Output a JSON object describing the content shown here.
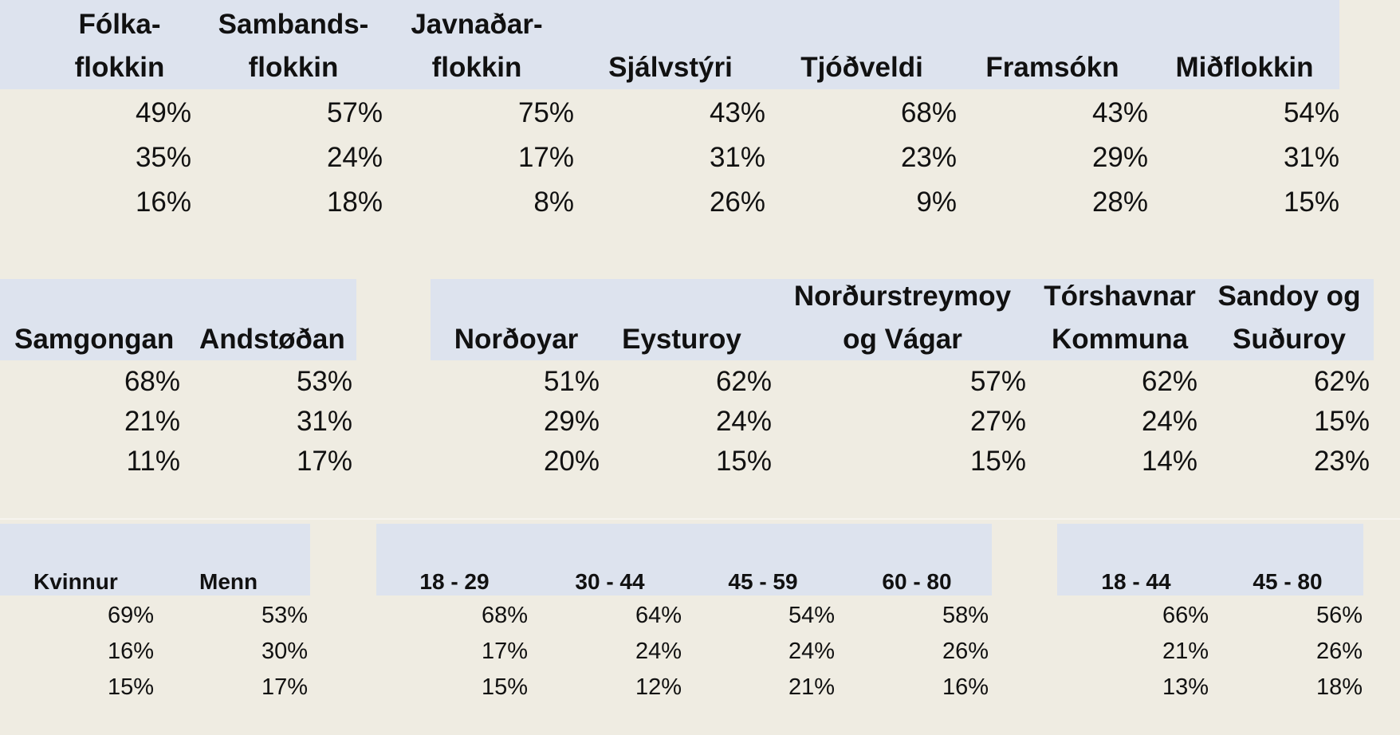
{
  "tables": [
    {
      "name": "parties",
      "headers": [
        "Fólka-\nflokkin",
        "Sambands-\nflokkin",
        "Javnaðar-\nflokkin",
        "Sjálvstýri",
        "Tjóðveldi",
        "Framsókn",
        "Miðflokkin"
      ],
      "rows": [
        [
          "49%",
          "57%",
          "75%",
          "43%",
          "68%",
          "43%",
          "54%"
        ],
        [
          "35%",
          "24%",
          "17%",
          "31%",
          "23%",
          "29%",
          "31%"
        ],
        [
          "16%",
          "18%",
          "8%",
          "26%",
          "9%",
          "28%",
          "15%"
        ]
      ]
    },
    {
      "name": "coalition",
      "headers": [
        "Samgongan",
        "Andstøðan"
      ],
      "rows": [
        [
          "68%",
          "53%"
        ],
        [
          "21%",
          "31%"
        ],
        [
          "11%",
          "17%"
        ]
      ]
    },
    {
      "name": "regions",
      "headers": [
        "Norðoyar",
        "Eysturoy",
        "Norðurstreymoy\nog Vágar",
        "Tórshavnar\nKommuna",
        "Sandoy og\nSuðuroy"
      ],
      "rows": [
        [
          "51%",
          "62%",
          "57%",
          "62%",
          "62%"
        ],
        [
          "29%",
          "24%",
          "27%",
          "24%",
          "15%"
        ],
        [
          "20%",
          "15%",
          "15%",
          "14%",
          "23%"
        ]
      ]
    },
    {
      "name": "gender",
      "headers": [
        "Kvinnur",
        "Menn"
      ],
      "rows": [
        [
          "69%",
          "53%"
        ],
        [
          "16%",
          "30%"
        ],
        [
          "15%",
          "17%"
        ]
      ]
    },
    {
      "name": "age-groups-4",
      "headers": [
        "18 - 29",
        "30 - 44",
        "45 - 59",
        "60 - 80"
      ],
      "rows": [
        [
          "68%",
          "64%",
          "54%",
          "58%"
        ],
        [
          "17%",
          "24%",
          "24%",
          "26%"
        ],
        [
          "15%",
          "12%",
          "21%",
          "16%"
        ]
      ]
    },
    {
      "name": "age-groups-2",
      "headers": [
        "18 - 44",
        "45 - 80"
      ],
      "rows": [
        [
          "66%",
          "56%"
        ],
        [
          "21%",
          "26%"
        ],
        [
          "13%",
          "18%"
        ]
      ]
    }
  ]
}
